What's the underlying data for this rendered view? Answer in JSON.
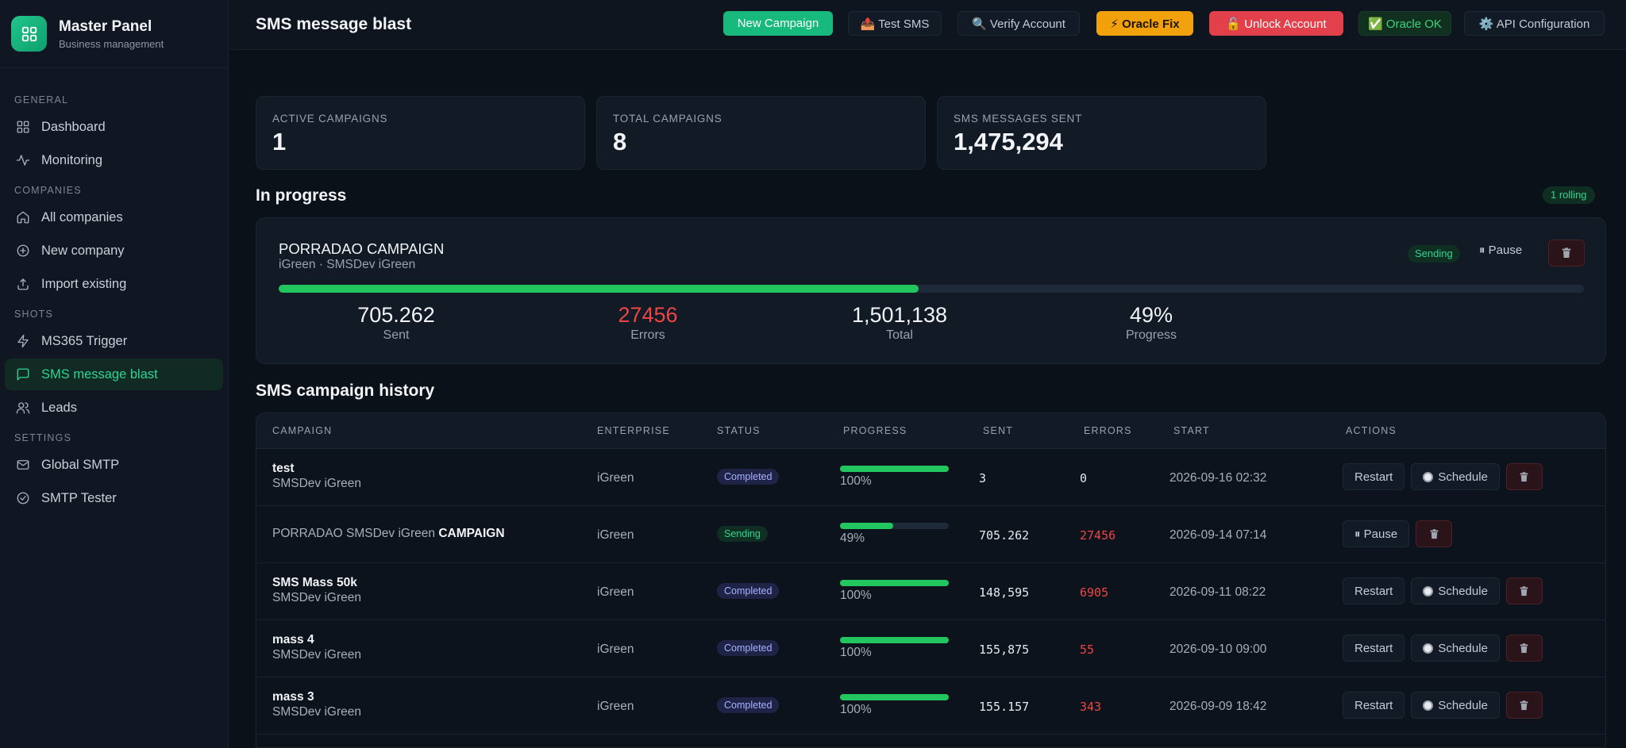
{
  "brand": {
    "title": "Master Panel",
    "subtitle": "Business management"
  },
  "sidebar": {
    "sections": [
      {
        "label": "GENERAL",
        "items": [
          {
            "label": "Dashboard",
            "icon": "grid-icon"
          },
          {
            "label": "Monitoring",
            "icon": "activity-icon"
          }
        ]
      },
      {
        "label": "COMPANIES",
        "items": [
          {
            "label": "All companies",
            "icon": "home-icon"
          },
          {
            "label": "New company",
            "icon": "plus-circle-icon"
          },
          {
            "label": "Import existing",
            "icon": "upload-icon"
          }
        ]
      },
      {
        "label": "SHOTS",
        "items": [
          {
            "label": "MS365 Trigger",
            "icon": "lightning-icon"
          },
          {
            "label": "SMS message blast",
            "icon": "message-icon",
            "active": true
          },
          {
            "label": "Leads",
            "icon": "users-icon"
          }
        ]
      },
      {
        "label": "SETTINGS",
        "items": [
          {
            "label": "Global SMTP",
            "icon": "mail-icon"
          },
          {
            "label": "SMTP Tester",
            "icon": "check-circle-icon"
          }
        ]
      }
    ]
  },
  "header": {
    "title": "SMS message blast",
    "buttons": {
      "new_campaign": "New Campaign",
      "test_sms": "📤 Test SMS",
      "verify_account": "🔍 Verify Account",
      "oracle_fix": "⚡ Oracle Fix",
      "unlock_account": "🔓 Unlock Account",
      "oracle_ok": "✅ Oracle OK",
      "api_config": "⚙️ API Configuration"
    }
  },
  "stats": [
    {
      "label": "ACTIVE CAMPAIGNS",
      "value": "1"
    },
    {
      "label": "TOTAL CAMPAIGNS",
      "value": "8"
    },
    {
      "label": "SMS MESSAGES SENT",
      "value": "1,475,294"
    }
  ],
  "in_progress": {
    "title": "In progress",
    "rolling_badge": "1 rolling",
    "campaign": {
      "name": "PORRADAO CAMPAIGN",
      "subtitle": "iGreen · SMSDev iGreen",
      "status": "Sending",
      "pause_label": "⏸ Pause",
      "progress": 0.49,
      "metrics": [
        {
          "value": "705.262",
          "label": "Sent",
          "error": false
        },
        {
          "value": "27456",
          "label": "Errors",
          "error": true
        },
        {
          "value": "1,501,138",
          "label": "Total",
          "error": false
        },
        {
          "value": "49%",
          "label": "Progress",
          "error": false
        }
      ]
    }
  },
  "history": {
    "title": "SMS campaign history",
    "columns": [
      "CAMPAIGN",
      "ENTERPRISE",
      "STATUS",
      "PROGRESS",
      "SENT",
      "ERRORS",
      "START",
      "ACTIONS"
    ],
    "rows": [
      {
        "name": "test",
        "sub": "SMSDev iGreen",
        "enterprise": "iGreen",
        "status": "Completed",
        "progress": 1.0,
        "pct": "100%",
        "sent": "3",
        "errors": "0",
        "start": "2026-09-16 02:32",
        "actions": [
          "Restart",
          "Schedule"
        ]
      },
      {
        "name": "PORRADAO SMSDev iGreen",
        "name_bold": "CAMPAIGN",
        "inline": true,
        "enterprise": "iGreen",
        "status": "Sending",
        "progress": 0.49,
        "pct": "49%",
        "sent": "705.262",
        "errors": "27456",
        "start": "2026-09-14 07:14",
        "actions": [
          "⏸ Pause"
        ]
      },
      {
        "name": "SMS Mass 50k",
        "sub": "SMSDev iGreen",
        "enterprise": "iGreen",
        "status": "Completed",
        "progress": 1.0,
        "pct": "100%",
        "sent": "148,595",
        "errors": "6905",
        "start": "2026-09-11 08:22",
        "actions": [
          "Restart",
          "Schedule"
        ]
      },
      {
        "name": "mass 4",
        "sub": "SMSDev iGreen",
        "enterprise": "iGreen",
        "status": "Completed",
        "progress": 1.0,
        "pct": "100%",
        "sent": "155,875",
        "errors": "55",
        "start": "2026-09-10 09:00",
        "actions": [
          "Restart",
          "Schedule"
        ]
      },
      {
        "name": "mass 3",
        "sub": "SMSDev iGreen",
        "enterprise": "iGreen",
        "status": "Completed",
        "progress": 1.0,
        "pct": "100%",
        "sent": "155.157",
        "errors": "343",
        "start": "2026-09-09 18:42",
        "actions": [
          "Restart",
          "Schedule"
        ]
      }
    ]
  },
  "colors": {
    "accent": "#17b97c",
    "progress": "#22c55e",
    "error": "#ef4444",
    "warning": "#f1a10c",
    "danger": "#e2414c"
  }
}
